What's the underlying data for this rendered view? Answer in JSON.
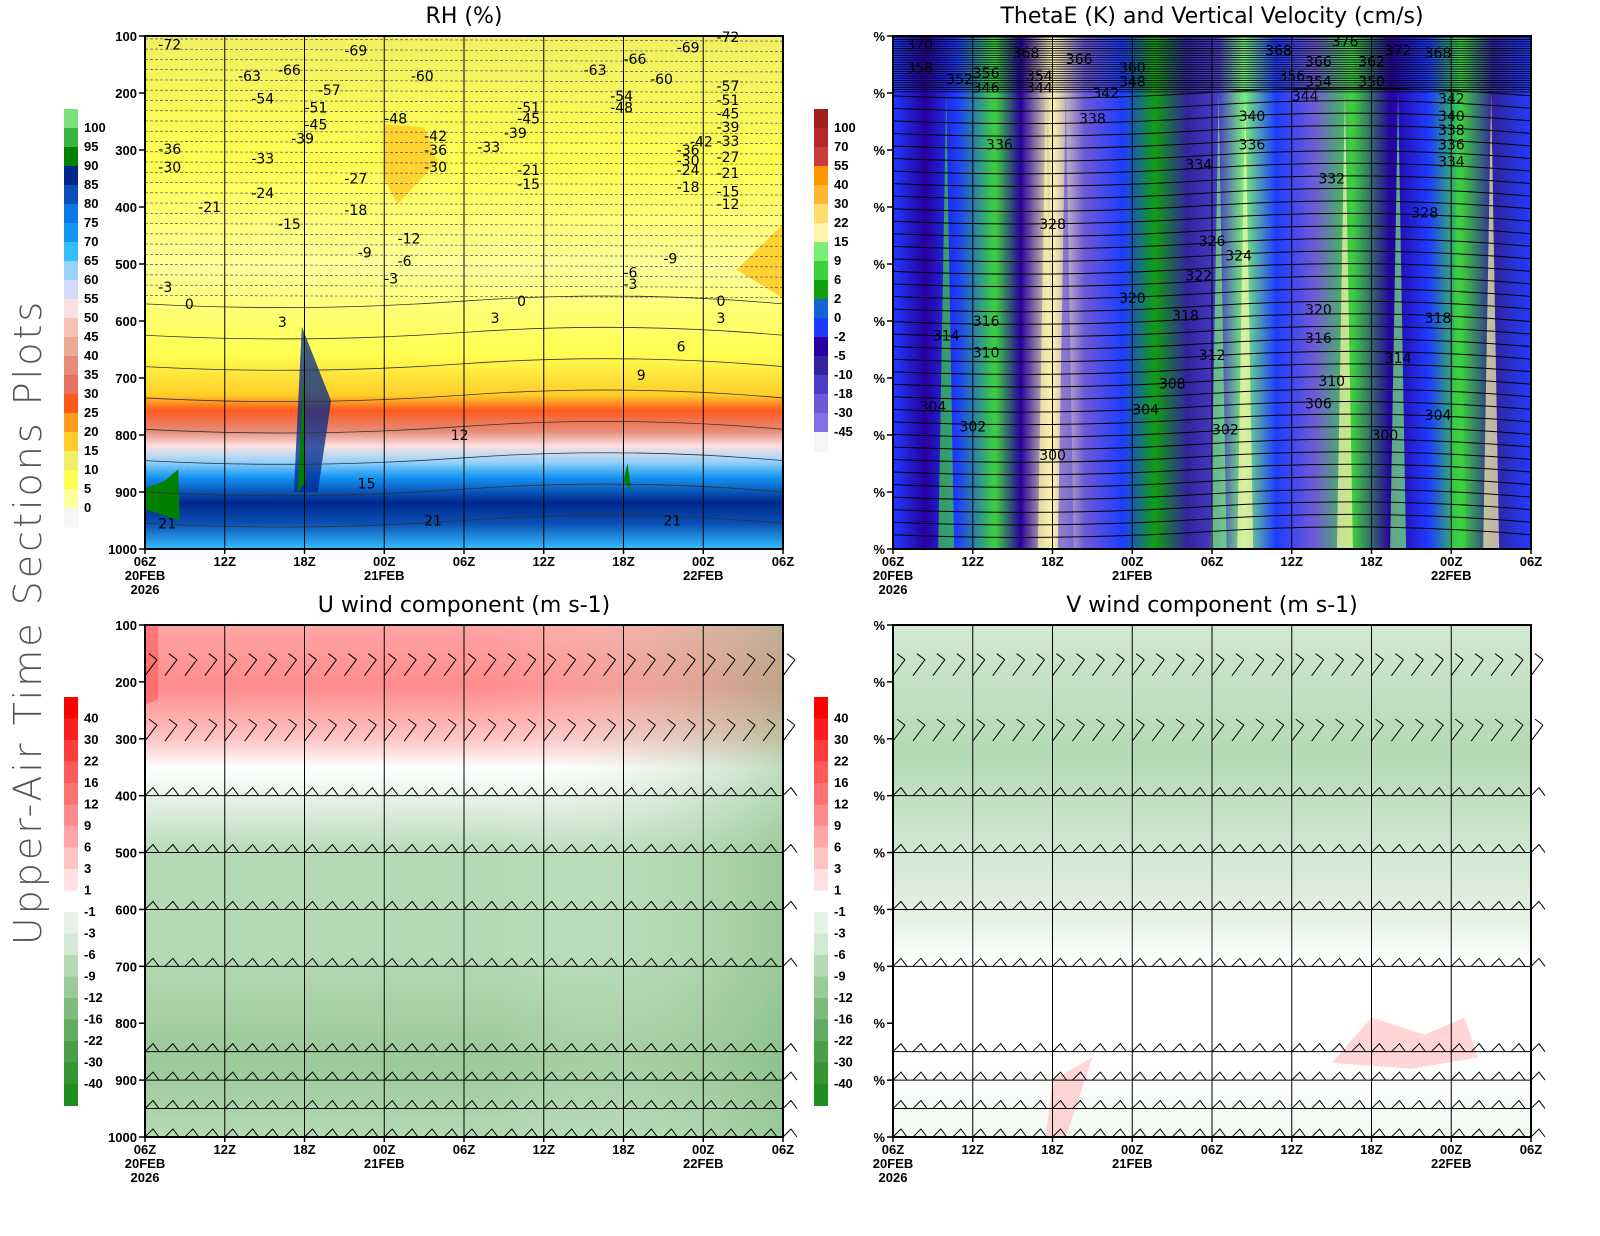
{
  "page_title": "Upper-Air Time Sections Plots",
  "chart_data": [
    {
      "id": "rh",
      "type": "heatmap",
      "title": "RH (%)",
      "ylabel_ticks": [
        "100",
        "200",
        "300",
        "400",
        "500",
        "600",
        "700",
        "800",
        "900",
        "1000"
      ],
      "y_values": [
        100,
        200,
        300,
        400,
        500,
        600,
        700,
        800,
        900,
        1000
      ],
      "ylim": [
        100,
        1000
      ],
      "x_ticks": [
        {
          "l1": "06Z",
          "l2": "20FEB",
          "l3": "2026"
        },
        {
          "l1": "12Z"
        },
        {
          "l1": "18Z"
        },
        {
          "l1": "00Z",
          "l2": "21FEB"
        },
        {
          "l1": "06Z"
        },
        {
          "l1": "12Z"
        },
        {
          "l1": "18Z"
        },
        {
          "l1": "00Z",
          "l2": "22FEB"
        },
        {
          "l1": "06Z"
        }
      ],
      "x_hours": [
        0,
        6,
        12,
        18,
        24,
        30,
        36,
        42,
        48
      ],
      "colorbar": {
        "labels": [
          "100",
          "95",
          "90",
          "85",
          "80",
          "75",
          "70",
          "65",
          "60",
          "55",
          "50",
          "45",
          "40",
          "35",
          "30",
          "25",
          "20",
          "15",
          "10",
          "5",
          "0"
        ],
        "colors": [
          "#78e278",
          "#3cb43c",
          "#008000",
          "#00288c",
          "#0a50b4",
          "#0a78e6",
          "#1496f5",
          "#32beff",
          "#96d2fa",
          "#d2dcfa",
          "#fae1e1",
          "#f5c3b4",
          "#ebaa96",
          "#e68c78",
          "#e1735f",
          "#ff5a1e",
          "#ff9b1e",
          "#ffcd28",
          "#f0f064",
          "#ffff50",
          "#ffff9b",
          "#f5f5f5"
        ]
      },
      "temperature_contour_labels": [
        {
          "v": "-72",
          "h": 1,
          "p": 115
        },
        {
          "v": "-69",
          "h": 15,
          "p": 125
        },
        {
          "v": "-66",
          "h": 10,
          "p": 160
        },
        {
          "v": "-63",
          "h": 7,
          "p": 170
        },
        {
          "v": "-57",
          "h": 13,
          "p": 195
        },
        {
          "v": "-54",
          "h": 8,
          "p": 210
        },
        {
          "v": "-51",
          "h": 12,
          "p": 225
        },
        {
          "v": "-48",
          "h": 18,
          "p": 245
        },
        {
          "v": "-45",
          "h": 12,
          "p": 255
        },
        {
          "v": "-39",
          "h": 11,
          "p": 280
        },
        {
          "v": "-36",
          "h": 1,
          "p": 298
        },
        {
          "v": "-33",
          "h": 8,
          "p": 315
        },
        {
          "v": "-30",
          "h": 1,
          "p": 330
        },
        {
          "v": "-27",
          "h": 15,
          "p": 350
        },
        {
          "v": "-24",
          "h": 8,
          "p": 375
        },
        {
          "v": "-21",
          "h": 4,
          "p": 400
        },
        {
          "v": "-18",
          "h": 15,
          "p": 405
        },
        {
          "v": "-15",
          "h": 10,
          "p": 430
        },
        {
          "v": "-12",
          "h": 19,
          "p": 455
        },
        {
          "v": "-9",
          "h": 16,
          "p": 480
        },
        {
          "v": "-6",
          "h": 19,
          "p": 495
        },
        {
          "v": "-3",
          "h": 1,
          "p": 540
        },
        {
          "v": "-3",
          "h": 18,
          "p": 525
        },
        {
          "v": "0",
          "h": 3,
          "p": 570
        },
        {
          "v": "3",
          "h": 10,
          "p": 602
        },
        {
          "v": "12",
          "h": 23,
          "p": 800
        },
        {
          "v": "15",
          "h": 16,
          "p": 885
        },
        {
          "v": "21",
          "h": 1,
          "p": 955
        },
        {
          "v": "21",
          "h": 21,
          "p": 950
        },
        {
          "v": "-60",
          "h": 20,
          "p": 170
        },
        {
          "v": "-42",
          "h": 21,
          "p": 275
        },
        {
          "v": "-36",
          "h": 21,
          "p": 300
        },
        {
          "v": "-30",
          "h": 21,
          "p": 330
        },
        {
          "v": "-63",
          "h": 33,
          "p": 160
        },
        {
          "v": "-66",
          "h": 36,
          "p": 140
        },
        {
          "v": "-60",
          "h": 38,
          "p": 175
        },
        {
          "v": "-69",
          "h": 40,
          "p": 120
        },
        {
          "v": "-54",
          "h": 35,
          "p": 205
        },
        {
          "v": "-48",
          "h": 35,
          "p": 225
        },
        {
          "v": "-51",
          "h": 28,
          "p": 225
        },
        {
          "v": "-45",
          "h": 28,
          "p": 245
        },
        {
          "v": "-39",
          "h": 27,
          "p": 270
        },
        {
          "v": "-33",
          "h": 25,
          "p": 295
        },
        {
          "v": "-21",
          "h": 28,
          "p": 335
        },
        {
          "v": "-15",
          "h": 28,
          "p": 360
        },
        {
          "v": "-9",
          "h": 39,
          "p": 490
        },
        {
          "v": "-6",
          "h": 36,
          "p": 515
        },
        {
          "v": "-3",
          "h": 36,
          "p": 535
        },
        {
          "v": "0",
          "h": 28,
          "p": 565
        },
        {
          "v": "3",
          "h": 26,
          "p": 595
        },
        {
          "v": "6",
          "h": 40,
          "p": 645
        },
        {
          "v": "9",
          "h": 37,
          "p": 695
        },
        {
          "v": "21",
          "h": 39,
          "p": 950
        },
        {
          "v": "-42",
          "h": 41,
          "p": 285
        },
        {
          "v": "-36",
          "h": 40,
          "p": 300
        },
        {
          "v": "-30",
          "h": 40,
          "p": 318
        },
        {
          "v": "-24",
          "h": 40,
          "p": 335
        },
        {
          "v": "-18",
          "h": 40,
          "p": 365
        },
        {
          "v": "-72",
          "h": 43,
          "p": 102
        },
        {
          "v": "-57",
          "h": 43,
          "p": 188
        },
        {
          "v": "-51",
          "h": 43,
          "p": 212
        },
        {
          "v": "-45",
          "h": 43,
          "p": 236
        },
        {
          "v": "-39",
          "h": 43,
          "p": 260
        },
        {
          "v": "-33",
          "h": 43,
          "p": 284
        },
        {
          "v": "-27",
          "h": 43,
          "p": 312
        },
        {
          "v": "-21",
          "h": 43,
          "p": 340
        },
        {
          "v": "-15",
          "h": 43,
          "p": 373
        },
        {
          "v": "-12",
          "h": 43,
          "p": 395
        },
        {
          "v": "0",
          "h": 43,
          "p": 565
        },
        {
          "v": "3",
          "h": 43,
          "p": 595
        }
      ]
    },
    {
      "id": "thetae",
      "type": "heatmap",
      "title": "ThetaE (K) and Vertical Velocity (cm/s)",
      "ylabel_ticks": [
        "%",
        "%",
        "%",
        "%",
        "%",
        "%",
        "%",
        "%",
        "%",
        "%"
      ],
      "ylim": [
        100,
        1000
      ],
      "x_ticks": [
        {
          "l1": "06Z",
          "l2": "20FEB",
          "l3": "2026"
        },
        {
          "l1": "12Z"
        },
        {
          "l1": "18Z"
        },
        {
          "l1": "00Z",
          "l2": "21FEB"
        },
        {
          "l1": "06Z"
        },
        {
          "l1": "12Z"
        },
        {
          "l1": "18Z"
        },
        {
          "l1": "00Z",
          "l2": "22FEB"
        },
        {
          "l1": "06Z"
        }
      ],
      "colorbar": {
        "labels": [
          "100",
          "70",
          "55",
          "40",
          "30",
          "22",
          "15",
          "9",
          "6",
          "2",
          "0",
          "-2",
          "-5",
          "-10",
          "-18",
          "-30",
          "-45"
        ],
        "colors": [
          "#a01e1e",
          "#b42828",
          "#c83c3c",
          "#ff9600",
          "#ffb432",
          "#ffdc6e",
          "#fff5aa",
          "#78f078",
          "#3cd23c",
          "#0fa00f",
          "#1464d2",
          "#1e3cff",
          "#2800a0",
          "#32249c",
          "#4a3cc8",
          "#6e5ad7",
          "#8270e6",
          "#f5f5f5"
        ]
      },
      "thetae_contour_labels": [
        {
          "v": "370",
          "h": 1,
          "p": 115
        },
        {
          "v": "358",
          "h": 1,
          "p": 155
        },
        {
          "v": "352",
          "h": 4,
          "p": 175
        },
        {
          "v": "356",
          "h": 6,
          "p": 165
        },
        {
          "v": "346",
          "h": 6,
          "p": 190
        },
        {
          "v": "368",
          "h": 9,
          "p": 130
        },
        {
          "v": "354",
          "h": 10,
          "p": 170
        },
        {
          "v": "344",
          "h": 10,
          "p": 190
        },
        {
          "v": "366",
          "h": 13,
          "p": 140
        },
        {
          "v": "360",
          "h": 17,
          "p": 155
        },
        {
          "v": "348",
          "h": 17,
          "p": 180
        },
        {
          "v": "342",
          "h": 15,
          "p": 200
        },
        {
          "v": "338",
          "h": 14,
          "p": 245
        },
        {
          "v": "336",
          "h": 7,
          "p": 290
        },
        {
          "v": "368",
          "h": 28,
          "p": 125
        },
        {
          "v": "366",
          "h": 31,
          "p": 145
        },
        {
          "v": "356",
          "h": 29,
          "p": 170
        },
        {
          "v": "354",
          "h": 31,
          "p": 180
        },
        {
          "v": "344",
          "h": 30,
          "p": 205
        },
        {
          "v": "376",
          "h": 33,
          "p": 110
        },
        {
          "v": "362",
          "h": 35,
          "p": 145
        },
        {
          "v": "350",
          "h": 35,
          "p": 180
        },
        {
          "v": "372",
          "h": 37,
          "p": 125
        },
        {
          "v": "368",
          "h": 40,
          "p": 130
        },
        {
          "v": "342",
          "h": 41,
          "p": 210
        },
        {
          "v": "340",
          "h": 41,
          "p": 240
        },
        {
          "v": "338",
          "h": 41,
          "p": 265
        },
        {
          "v": "336",
          "h": 41,
          "p": 290
        },
        {
          "v": "334",
          "h": 41,
          "p": 320
        },
        {
          "v": "340",
          "h": 26,
          "p": 240
        },
        {
          "v": "336",
          "h": 26,
          "p": 290
        },
        {
          "v": "334",
          "h": 22,
          "p": 325
        },
        {
          "v": "332",
          "h": 32,
          "p": 350
        },
        {
          "v": "328",
          "h": 11,
          "p": 430
        },
        {
          "v": "326",
          "h": 23,
          "p": 460
        },
        {
          "v": "324",
          "h": 25,
          "p": 485
        },
        {
          "v": "322",
          "h": 22,
          "p": 520
        },
        {
          "v": "320",
          "h": 17,
          "p": 560
        },
        {
          "v": "318",
          "h": 21,
          "p": 590
        },
        {
          "v": "316",
          "h": 6,
          "p": 600
        },
        {
          "v": "314",
          "h": 3,
          "p": 625
        },
        {
          "v": "310",
          "h": 6,
          "p": 655
        },
        {
          "v": "312",
          "h": 23,
          "p": 660
        },
        {
          "v": "308",
          "h": 20,
          "p": 710
        },
        {
          "v": "304",
          "h": 2,
          "p": 750
        },
        {
          "v": "302",
          "h": 5,
          "p": 785
        },
        {
          "v": "300",
          "h": 11,
          "p": 835
        },
        {
          "v": "304",
          "h": 18,
          "p": 755
        },
        {
          "v": "302",
          "h": 24,
          "p": 790
        },
        {
          "v": "328",
          "h": 39,
          "p": 410
        },
        {
          "v": "320",
          "h": 31,
          "p": 580
        },
        {
          "v": "318",
          "h": 40,
          "p": 595
        },
        {
          "v": "316",
          "h": 31,
          "p": 630
        },
        {
          "v": "314",
          "h": 37,
          "p": 665
        },
        {
          "v": "310",
          "h": 32,
          "p": 705
        },
        {
          "v": "306",
          "h": 31,
          "p": 745
        },
        {
          "v": "304",
          "h": 40,
          "p": 765
        },
        {
          "v": "300",
          "h": 36,
          "p": 800
        }
      ]
    },
    {
      "id": "u",
      "type": "heatmap",
      "title": "U wind component (m s-1)",
      "ylabel_ticks": [
        "100",
        "200",
        "300",
        "400",
        "500",
        "600",
        "700",
        "800",
        "900",
        "1000"
      ],
      "ylim": [
        100,
        1000
      ],
      "x_ticks": [
        {
          "l1": "06Z",
          "l2": "20FEB",
          "l3": "2026"
        },
        {
          "l1": "12Z"
        },
        {
          "l1": "18Z"
        },
        {
          "l1": "00Z",
          "l2": "21FEB"
        },
        {
          "l1": "06Z"
        },
        {
          "l1": "12Z"
        },
        {
          "l1": "18Z"
        },
        {
          "l1": "00Z",
          "l2": "22FEB"
        },
        {
          "l1": "06Z"
        }
      ],
      "colorbar": {
        "labels": [
          "40",
          "30",
          "22",
          "16",
          "12",
          "9",
          "6",
          "3",
          "1",
          "-1",
          "-3",
          "-6",
          "-9",
          "-12",
          "-16",
          "-22",
          "-30",
          "-40"
        ],
        "colors": [
          "#ff0000",
          "#ff1e1e",
          "#ff3c3c",
          "#ff5a5a",
          "#ff7070",
          "#ff8c8c",
          "#ffa5a5",
          "#ffc3c3",
          "#ffe1e1",
          "#ffffff",
          "#e6f2e6",
          "#d2e8d2",
          "#b4d9b4",
          "#9ac99a",
          "#7fba7f",
          "#62ab62",
          "#4b9f4b",
          "#359535",
          "#1e8c1e"
        ]
      },
      "barb_levels": [
        175,
        290,
        400,
        500,
        600,
        700,
        850,
        900,
        950,
        1000
      ]
    },
    {
      "id": "v",
      "type": "heatmap",
      "title": "V wind component (m s-1)",
      "ylabel_ticks": [
        "%",
        "%",
        "%",
        "%",
        "%",
        "%",
        "%",
        "%",
        "%",
        "%"
      ],
      "ylim": [
        100,
        1000
      ],
      "x_ticks": [
        {
          "l1": "06Z",
          "l2": "20FEB",
          "l3": "2026"
        },
        {
          "l1": "12Z"
        },
        {
          "l1": "18Z"
        },
        {
          "l1": "00Z",
          "l2": "21FEB"
        },
        {
          "l1": "06Z"
        },
        {
          "l1": "12Z"
        },
        {
          "l1": "18Z"
        },
        {
          "l1": "00Z",
          "l2": "22FEB"
        },
        {
          "l1": "06Z"
        }
      ],
      "colorbar": {
        "labels": [
          "40",
          "30",
          "22",
          "16",
          "12",
          "9",
          "6",
          "3",
          "1",
          "-1",
          "-3",
          "-6",
          "-9",
          "-12",
          "-16",
          "-22",
          "-30",
          "-40"
        ],
        "colors": [
          "#ff0000",
          "#ff1e1e",
          "#ff3c3c",
          "#ff5a5a",
          "#ff7070",
          "#ff8c8c",
          "#ffa5a5",
          "#ffc3c3",
          "#ffe1e1",
          "#ffffff",
          "#e6f2e6",
          "#d2e8d2",
          "#b4d9b4",
          "#9ac99a",
          "#7fba7f",
          "#62ab62",
          "#4b9f4b",
          "#359535",
          "#1e8c1e"
        ]
      },
      "barb_levels": [
        175,
        290,
        400,
        500,
        600,
        700,
        850,
        900,
        950,
        1000
      ]
    }
  ]
}
